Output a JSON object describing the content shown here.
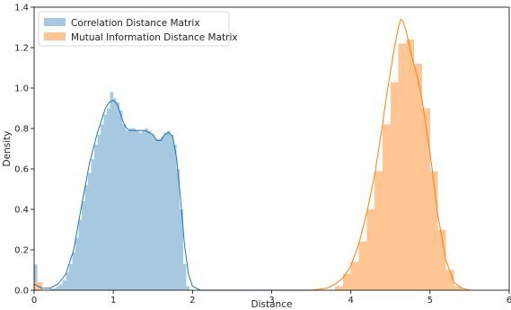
{
  "chart_data": {
    "type": "bar",
    "xlabel": "Distance",
    "ylabel": "Density",
    "xlim": [
      0,
      6
    ],
    "ylim": [
      0,
      1.4
    ],
    "xticks": [
      "0",
      "1",
      "2",
      "3",
      "4",
      "5",
      "6"
    ],
    "yticks": [
      "0.0",
      "0.2",
      "0.4",
      "0.6",
      "0.8",
      "1.0",
      "1.2",
      "1.4"
    ],
    "grid": false,
    "legend_position": "top-left",
    "series": [
      {
        "name": "Correlation Distance Matrix",
        "color": "#1f77b4",
        "bar_color": "#a6c8e0",
        "bin_width": 0.04,
        "bars": [
          [
            0.0,
            0.13
          ],
          [
            0.04,
            0.02
          ],
          [
            0.2,
            0.01
          ],
          [
            0.24,
            0.01
          ],
          [
            0.28,
            0.02
          ],
          [
            0.32,
            0.03
          ],
          [
            0.36,
            0.05
          ],
          [
            0.4,
            0.09
          ],
          [
            0.44,
            0.13
          ],
          [
            0.48,
            0.19
          ],
          [
            0.52,
            0.26
          ],
          [
            0.56,
            0.35
          ],
          [
            0.6,
            0.44
          ],
          [
            0.64,
            0.52
          ],
          [
            0.68,
            0.58
          ],
          [
            0.72,
            0.65
          ],
          [
            0.76,
            0.72
          ],
          [
            0.8,
            0.77
          ],
          [
            0.84,
            0.82
          ],
          [
            0.88,
            0.87
          ],
          [
            0.92,
            0.9
          ],
          [
            0.96,
            0.98
          ],
          [
            1.0,
            0.95
          ],
          [
            1.04,
            0.93
          ],
          [
            1.08,
            0.89
          ],
          [
            1.12,
            0.82
          ],
          [
            1.16,
            0.79
          ],
          [
            1.2,
            0.8
          ],
          [
            1.24,
            0.8
          ],
          [
            1.28,
            0.79
          ],
          [
            1.32,
            0.78
          ],
          [
            1.36,
            0.79
          ],
          [
            1.4,
            0.8
          ],
          [
            1.44,
            0.79
          ],
          [
            1.48,
            0.77
          ],
          [
            1.52,
            0.75
          ],
          [
            1.56,
            0.75
          ],
          [
            1.6,
            0.76
          ],
          [
            1.64,
            0.78
          ],
          [
            1.68,
            0.79
          ],
          [
            1.72,
            0.77
          ],
          [
            1.76,
            0.72
          ],
          [
            1.8,
            0.6
          ],
          [
            1.84,
            0.4
          ],
          [
            1.88,
            0.13
          ],
          [
            1.92,
            0.02
          ]
        ],
        "kde": [
          [
            0.0,
            0.03
          ],
          [
            0.1,
            0.01
          ],
          [
            0.2,
            0.01
          ],
          [
            0.3,
            0.03
          ],
          [
            0.4,
            0.08
          ],
          [
            0.5,
            0.2
          ],
          [
            0.6,
            0.42
          ],
          [
            0.7,
            0.63
          ],
          [
            0.8,
            0.78
          ],
          [
            0.9,
            0.9
          ],
          [
            0.95,
            0.93
          ],
          [
            1.0,
            0.94
          ],
          [
            1.05,
            0.92
          ],
          [
            1.1,
            0.86
          ],
          [
            1.15,
            0.81
          ],
          [
            1.2,
            0.79
          ],
          [
            1.3,
            0.79
          ],
          [
            1.4,
            0.79
          ],
          [
            1.5,
            0.77
          ],
          [
            1.55,
            0.74
          ],
          [
            1.6,
            0.74
          ],
          [
            1.65,
            0.77
          ],
          [
            1.7,
            0.78
          ],
          [
            1.75,
            0.76
          ],
          [
            1.8,
            0.65
          ],
          [
            1.85,
            0.45
          ],
          [
            1.9,
            0.22
          ],
          [
            1.95,
            0.08
          ],
          [
            2.0,
            0.02
          ],
          [
            2.1,
            0.0
          ],
          [
            2.5,
            0.0
          ],
          [
            3.0,
            0.0
          ],
          [
            3.5,
            0.0
          ]
        ]
      },
      {
        "name": "Mutual Information Distance Matrix",
        "color": "#ff7f0e",
        "bar_color": "#ffc694",
        "bin_width": 0.1,
        "bars": [
          [
            0.0,
            0.04
          ],
          [
            3.8,
            0.02
          ],
          [
            3.9,
            0.08
          ],
          [
            4.0,
            0.14
          ],
          [
            4.1,
            0.24
          ],
          [
            4.2,
            0.4
          ],
          [
            4.3,
            0.59
          ],
          [
            4.4,
            0.82
          ],
          [
            4.5,
            1.03
          ],
          [
            4.6,
            1.22
          ],
          [
            4.7,
            1.24
          ],
          [
            4.8,
            1.12
          ],
          [
            4.9,
            0.9
          ],
          [
            5.0,
            0.59
          ],
          [
            5.1,
            0.3
          ],
          [
            5.2,
            0.1
          ],
          [
            5.3,
            0.02
          ]
        ],
        "kde": [
          [
            3.5,
            0.0
          ],
          [
            3.7,
            0.01
          ],
          [
            3.8,
            0.03
          ],
          [
            3.9,
            0.06
          ],
          [
            4.0,
            0.12
          ],
          [
            4.1,
            0.23
          ],
          [
            4.2,
            0.38
          ],
          [
            4.3,
            0.57
          ],
          [
            4.4,
            0.82
          ],
          [
            4.45,
            0.96
          ],
          [
            4.5,
            1.08
          ],
          [
            4.55,
            1.2
          ],
          [
            4.6,
            1.3
          ],
          [
            4.63,
            1.34
          ],
          [
            4.66,
            1.33
          ],
          [
            4.7,
            1.28
          ],
          [
            4.75,
            1.19
          ],
          [
            4.8,
            1.11
          ],
          [
            4.85,
            1.04
          ],
          [
            4.9,
            0.94
          ],
          [
            5.0,
            0.68
          ],
          [
            5.1,
            0.37
          ],
          [
            5.2,
            0.15
          ],
          [
            5.3,
            0.04
          ],
          [
            5.4,
            0.01
          ],
          [
            5.5,
            0.0
          ]
        ]
      }
    ]
  }
}
